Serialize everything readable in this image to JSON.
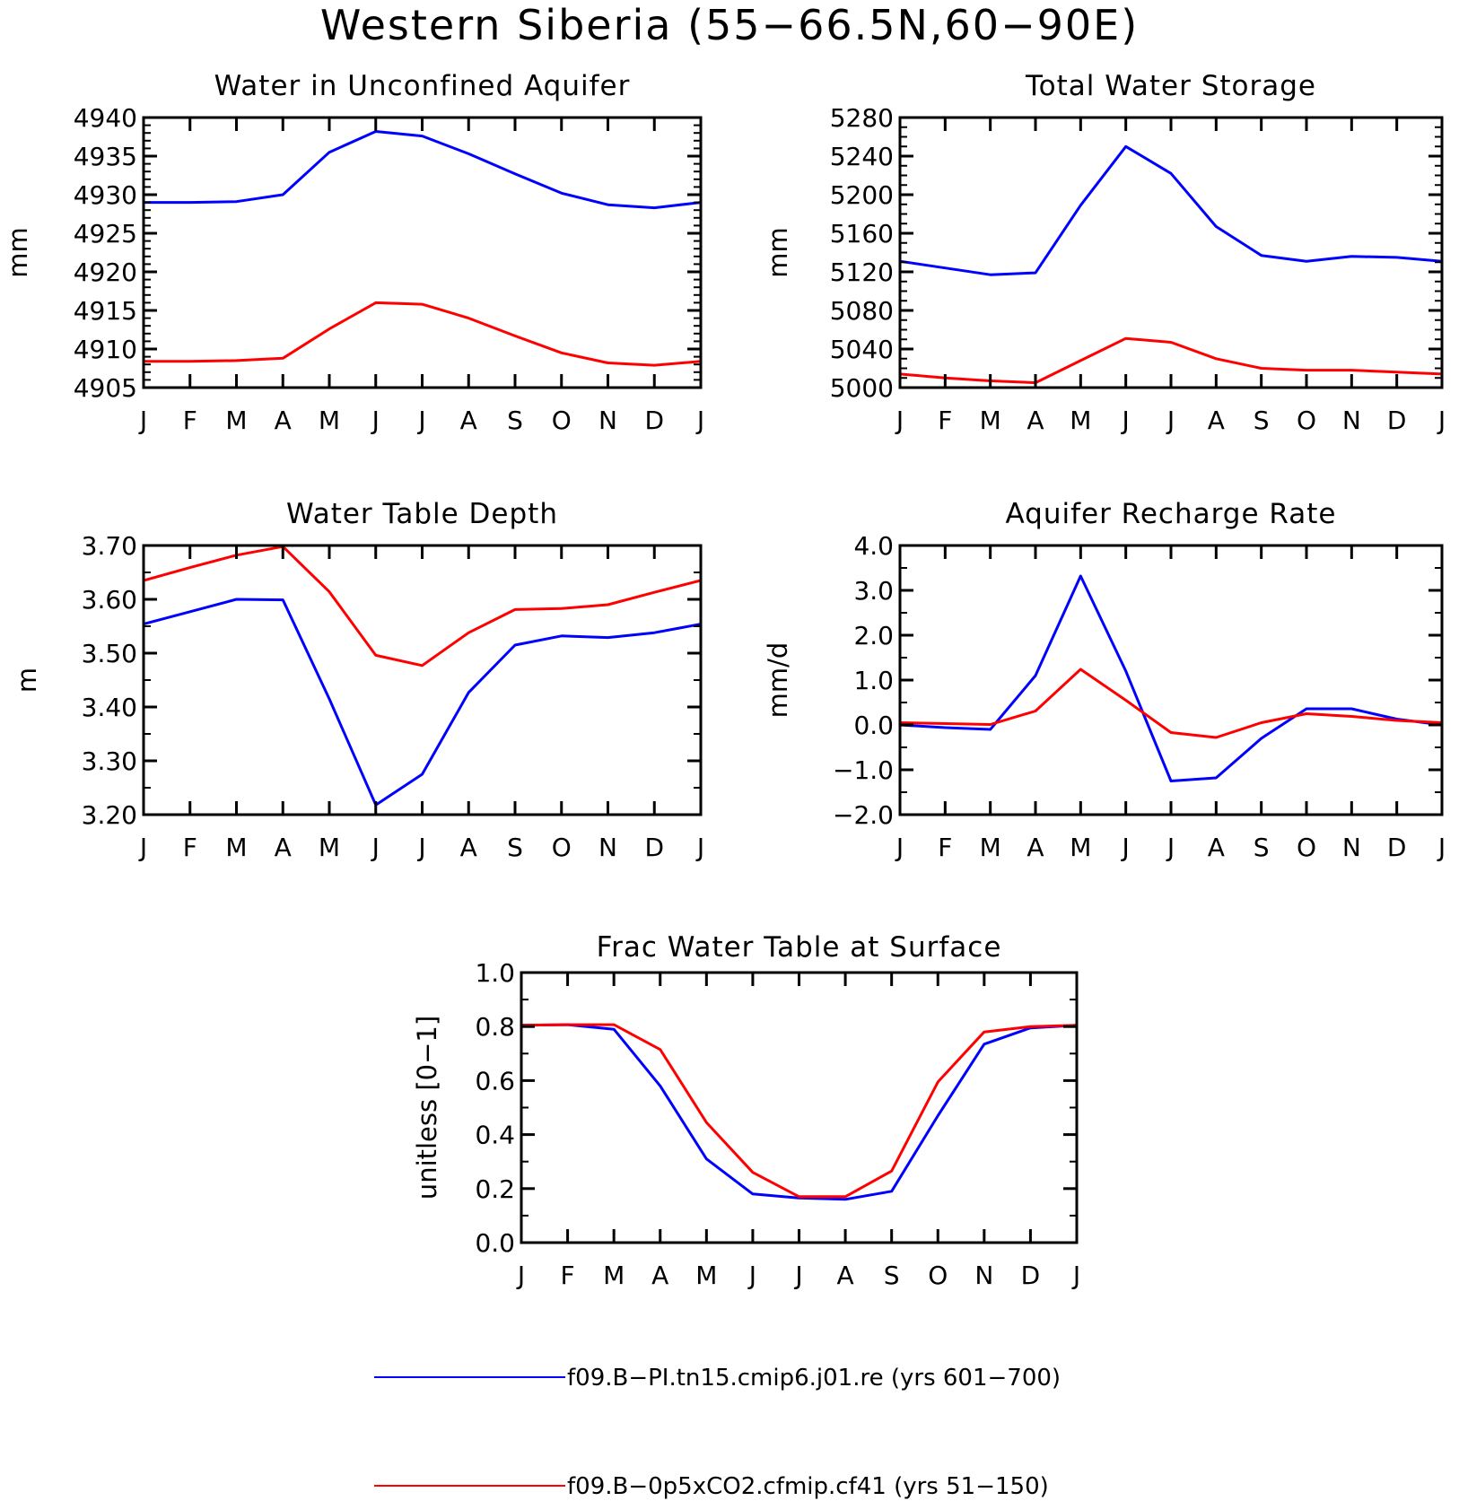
{
  "figure_title": "Western Siberia (55−66.5N,60−90E)",
  "colors": {
    "series_0": "#0000ff",
    "series_1": "#ff0000"
  },
  "legend": {
    "items": [
      {
        "label": "f09.B−PI.tn15.cmip6.j01.re (yrs 601−700)",
        "color": "#0000ff"
      },
      {
        "label": "f09.B−0p5xCO2.cfmip.cf41 (yrs 51−150)",
        "color": "#ff0000"
      }
    ]
  },
  "chart_data": [
    {
      "type": "line",
      "title": "Water in Unconfined Aquifer",
      "ylabel": "mm",
      "xlabel": "",
      "categories": [
        "J",
        "F",
        "M",
        "A",
        "M",
        "J",
        "J",
        "A",
        "S",
        "O",
        "N",
        "D",
        "J"
      ],
      "ylim": [
        4905,
        4940
      ],
      "yticks": [
        4905,
        4910,
        4915,
        4920,
        4925,
        4930,
        4935,
        4940
      ],
      "ytick_labels": [
        "4905",
        "4910",
        "4915",
        "4920",
        "4925",
        "4930",
        "4935",
        "4940"
      ],
      "yminor": [
        4906,
        4907,
        4908,
        4909,
        4911,
        4912,
        4913,
        4914,
        4916,
        4917,
        4918,
        4919,
        4921,
        4922,
        4923,
        4924,
        4926,
        4927,
        4928,
        4929,
        4931,
        4932,
        4933,
        4934,
        4936,
        4937,
        4938,
        4939
      ],
      "series": [
        {
          "values": [
            4929.0,
            4929.0,
            4929.1,
            4930.0,
            4935.5,
            4938.2,
            4937.6,
            4935.3,
            4932.7,
            4930.2,
            4928.7,
            4928.3,
            4929.0
          ]
        },
        {
          "values": [
            4908.4,
            4908.4,
            4908.5,
            4908.8,
            4912.6,
            4916.0,
            4915.8,
            4914.0,
            4911.7,
            4909.5,
            4908.2,
            4907.9,
            4908.4
          ]
        }
      ]
    },
    {
      "type": "line",
      "title": "Total Water Storage",
      "ylabel": "mm",
      "xlabel": "",
      "categories": [
        "J",
        "F",
        "M",
        "A",
        "M",
        "J",
        "J",
        "A",
        "S",
        "O",
        "N",
        "D",
        "J"
      ],
      "ylim": [
        5000,
        5280
      ],
      "yticks": [
        5000,
        5040,
        5080,
        5120,
        5160,
        5200,
        5240,
        5280
      ],
      "ytick_labels": [
        "5000",
        "5040",
        "5080",
        "5120",
        "5160",
        "5200",
        "5240",
        "5280"
      ],
      "yminor": [
        5010,
        5020,
        5030,
        5050,
        5060,
        5070,
        5090,
        5100,
        5110,
        5130,
        5140,
        5150,
        5170,
        5180,
        5190,
        5210,
        5220,
        5230,
        5250,
        5260,
        5270
      ],
      "series": [
        {
          "values": [
            5131,
            5124,
            5117,
            5119,
            5189,
            5250,
            5222,
            5167,
            5137,
            5131,
            5136,
            5135,
            5131
          ]
        },
        {
          "values": [
            5014,
            5010,
            5007,
            5005,
            5028,
            5051,
            5047,
            5030,
            5020,
            5018,
            5018,
            5016,
            5014
          ]
        }
      ]
    },
    {
      "type": "line",
      "title": "Water Table Depth",
      "ylabel": "m",
      "xlabel": "",
      "categories": [
        "J",
        "F",
        "M",
        "A",
        "M",
        "J",
        "J",
        "A",
        "S",
        "O",
        "N",
        "D",
        "J"
      ],
      "ylim": [
        3.2,
        3.7
      ],
      "yticks": [
        3.2,
        3.3,
        3.4,
        3.5,
        3.6,
        3.7
      ],
      "ytick_labels": [
        "3.20",
        "3.30",
        "3.40",
        "3.50",
        "3.60",
        "3.70"
      ],
      "yminor": [
        3.25,
        3.35,
        3.45,
        3.55,
        3.65
      ],
      "series": [
        {
          "values": [
            3.554,
            3.577,
            3.6,
            3.599,
            3.415,
            3.218,
            3.275,
            3.427,
            3.515,
            3.532,
            3.529,
            3.538,
            3.554
          ]
        },
        {
          "values": [
            3.635,
            3.659,
            3.682,
            3.698,
            3.614,
            3.496,
            3.477,
            3.538,
            3.581,
            3.583,
            3.59,
            3.613,
            3.635
          ]
        }
      ]
    },
    {
      "type": "line",
      "title": "Aquifer Recharge Rate",
      "ylabel": "mm/d",
      "xlabel": "",
      "categories": [
        "J",
        "F",
        "M",
        "A",
        "M",
        "J",
        "J",
        "A",
        "S",
        "O",
        "N",
        "D",
        "J"
      ],
      "ylim": [
        -2.0,
        4.0
      ],
      "yticks": [
        -2,
        -1,
        0,
        1,
        2,
        3,
        4
      ],
      "ytick_labels": [
        "−2.0",
        "−1.0",
        "0.0",
        "1.0",
        "2.0",
        "3.0",
        "4.0"
      ],
      "yminor": [
        -1.5,
        -0.5,
        0.5,
        1.5,
        2.5,
        3.5
      ],
      "series": [
        {
          "values": [
            0.0,
            -0.06,
            -0.1,
            1.1,
            3.32,
            1.2,
            -1.25,
            -1.18,
            -0.3,
            0.36,
            0.36,
            0.13,
            0.0
          ]
        },
        {
          "values": [
            0.05,
            0.03,
            0.01,
            0.31,
            1.24,
            0.55,
            -0.17,
            -0.28,
            0.05,
            0.25,
            0.19,
            0.1,
            0.05
          ]
        }
      ]
    },
    {
      "type": "line",
      "title": "Frac Water Table at Surface",
      "ylabel": "unitless [0−1]",
      "xlabel": "",
      "categories": [
        "J",
        "F",
        "M",
        "A",
        "M",
        "J",
        "J",
        "A",
        "S",
        "O",
        "N",
        "D",
        "J"
      ],
      "ylim": [
        0.0,
        1.0
      ],
      "yticks": [
        0.0,
        0.2,
        0.4,
        0.6,
        0.8,
        1.0
      ],
      "ytick_labels": [
        "0.0",
        "0.2",
        "0.4",
        "0.6",
        "0.8",
        "1.0"
      ],
      "yminor": [
        0.1,
        0.3,
        0.5,
        0.7,
        0.9
      ],
      "series": [
        {
          "values": [
            0.805,
            0.807,
            0.79,
            0.58,
            0.31,
            0.18,
            0.165,
            0.16,
            0.19,
            0.47,
            0.735,
            0.795,
            0.805
          ]
        },
        {
          "values": [
            0.805,
            0.807,
            0.807,
            0.715,
            0.445,
            0.26,
            0.17,
            0.17,
            0.265,
            0.595,
            0.78,
            0.8,
            0.805
          ]
        }
      ]
    }
  ]
}
